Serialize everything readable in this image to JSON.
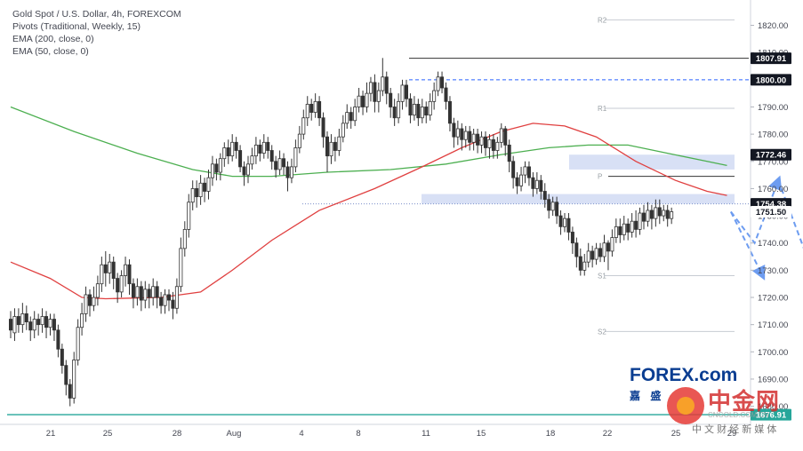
{
  "legend": {
    "line1": "Gold Spot / U.S. Dollar, 4h, FOREXCOM",
    "line2": "Pivots (Traditional, Weekly, 15)",
    "line3": "EMA (200, close, 0)",
    "line4": "EMA (50, close, 0)"
  },
  "watermark": {
    "brand": "FOREX.com",
    "brand_cn": "嘉 盛",
    "site_logo": "中金网",
    "site_url": "CNGOLD.COM.CN",
    "site_tagline": "中 文 财 经 新 媒 体"
  },
  "colors": {
    "up": "#333333",
    "down": "#333333",
    "ema200": "#4caf50",
    "ema50": "#e04040",
    "zone": "#b8c7ec",
    "projection": "#6d9cf0",
    "axis_tag": "#131722",
    "pivot_line": "#c7cbd3",
    "bottom_line": "#26a69a"
  },
  "chart_data": {
    "type": "candlestick",
    "title": "Gold Spot / U.S. Dollar, 4h, FOREXCOM",
    "ylim": [
      1674,
      1828
    ],
    "y_ticks": [
      1820,
      1810,
      1800,
      1790,
      1780,
      1770,
      1760,
      1750,
      1740,
      1730,
      1720,
      1710,
      1700,
      1690,
      1680
    ],
    "y_tick_labels": [
      "1820.00",
      "1810.00",
      "1800.00",
      "1790.00",
      "1780.00",
      "1770.00",
      "1760.00",
      "1750.00",
      "1740.00",
      "1730.00",
      "1720.00",
      "1710.00",
      "1700.00",
      "1690.00",
      "1680.00"
    ],
    "x_labels": [
      "21",
      "25",
      "28",
      "Aug",
      "4",
      "8",
      "11",
      "15",
      "18",
      "22",
      "25",
      "29"
    ],
    "price_tags": [
      {
        "label": "1807.91",
        "value": 1807.91,
        "bg": "#131722",
        "fg": "#ffffff"
      },
      {
        "label": "1800.00",
        "value": 1800.0,
        "bg": "#131722",
        "fg": "#ffffff"
      },
      {
        "label": "1772.46",
        "value": 1772.46,
        "bg": "#131722",
        "fg": "#ffffff"
      },
      {
        "label": "1754.38",
        "value": 1754.38,
        "bg": "#131722",
        "fg": "#ffffff"
      },
      {
        "label": "1751.50",
        "value": 1751.5,
        "bg": "#ffffff",
        "fg": "#131722"
      },
      {
        "label": "1676.91",
        "value": 1676.91,
        "bg": "#26a69a",
        "fg": "#ffffff"
      }
    ],
    "pivots": [
      {
        "label": "R2",
        "value": 1822.0
      },
      {
        "label": "R1",
        "value": 1789.5
      },
      {
        "label": "P",
        "value": 1764.5
      },
      {
        "label": "S1",
        "value": 1728.0
      },
      {
        "label": "S2",
        "value": 1707.5
      }
    ],
    "levels": {
      "high_line": 1807.91,
      "dashed_line": 1800.0,
      "dotted_line": 1754.38,
      "bottom_line": 1676.91
    },
    "zones": [
      {
        "from": 1767.0,
        "to": 1772.46
      },
      {
        "from": 1754.38,
        "to": 1758.0
      }
    ],
    "ema200": [
      {
        "x": 0,
        "y": 1790
      },
      {
        "x": 16,
        "y": 1781
      },
      {
        "x": 32,
        "y": 1773
      },
      {
        "x": 46,
        "y": 1767
      },
      {
        "x": 56,
        "y": 1764.5
      },
      {
        "x": 66,
        "y": 1764.5
      },
      {
        "x": 80,
        "y": 1766
      },
      {
        "x": 96,
        "y": 1767
      },
      {
        "x": 110,
        "y": 1769
      },
      {
        "x": 124,
        "y": 1772.5
      },
      {
        "x": 136,
        "y": 1775
      },
      {
        "x": 146,
        "y": 1776
      },
      {
        "x": 156,
        "y": 1776
      },
      {
        "x": 166,
        "y": 1773
      },
      {
        "x": 176,
        "y": 1770
      },
      {
        "x": 181,
        "y": 1768.5
      }
    ],
    "ema50": [
      {
        "x": 0,
        "y": 1733
      },
      {
        "x": 10,
        "y": 1727
      },
      {
        "x": 18,
        "y": 1720
      },
      {
        "x": 24,
        "y": 1719.5
      },
      {
        "x": 38,
        "y": 1720
      },
      {
        "x": 48,
        "y": 1722
      },
      {
        "x": 56,
        "y": 1730
      },
      {
        "x": 66,
        "y": 1741
      },
      {
        "x": 78,
        "y": 1752
      },
      {
        "x": 92,
        "y": 1760
      },
      {
        "x": 104,
        "y": 1768
      },
      {
        "x": 114,
        "y": 1775
      },
      {
        "x": 124,
        "y": 1781
      },
      {
        "x": 132,
        "y": 1784
      },
      {
        "x": 140,
        "y": 1783
      },
      {
        "x": 148,
        "y": 1779
      },
      {
        "x": 158,
        "y": 1770
      },
      {
        "x": 168,
        "y": 1763
      },
      {
        "x": 176,
        "y": 1759
      },
      {
        "x": 181,
        "y": 1757.5
      }
    ],
    "projections": [
      {
        "points": [
          {
            "x": 182,
            "y": 1751.5
          },
          {
            "x": 188,
            "y": 1740
          },
          {
            "x": 194,
            "y": 1763
          }
        ]
      },
      {
        "points": [
          {
            "x": 182,
            "y": 1751.5
          },
          {
            "x": 190,
            "y": 1728
          }
        ]
      },
      {
        "points": [
          {
            "x": 194,
            "y": 1763
          },
          {
            "x": 203,
            "y": 1728
          }
        ]
      }
    ],
    "candles": [
      [
        0,
        1712,
        1708,
        1715,
        1705
      ],
      [
        1,
        1707,
        1713,
        1716,
        1704
      ],
      [
        2,
        1713,
        1710,
        1716,
        1707
      ],
      [
        3,
        1710,
        1714,
        1718,
        1707
      ],
      [
        4,
        1714,
        1711,
        1717,
        1708
      ],
      [
        5,
        1711,
        1708,
        1713,
        1704
      ],
      [
        6,
        1708,
        1712,
        1715,
        1705
      ],
      [
        7,
        1712,
        1710,
        1714,
        1706
      ],
      [
        8,
        1710,
        1713,
        1716,
        1707
      ],
      [
        9,
        1713,
        1709,
        1715,
        1705
      ],
      [
        10,
        1709,
        1712,
        1714,
        1706
      ],
      [
        11,
        1712,
        1708,
        1714,
        1704
      ],
      [
        12,
        1708,
        1701,
        1710,
        1698
      ],
      [
        13,
        1701,
        1695,
        1703,
        1692
      ],
      [
        14,
        1695,
        1688,
        1697,
        1684
      ],
      [
        15,
        1688,
        1683,
        1690,
        1680
      ],
      [
        16,
        1683,
        1697,
        1700,
        1681
      ],
      [
        17,
        1697,
        1709,
        1712,
        1695
      ],
      [
        18,
        1709,
        1714,
        1718,
        1706
      ],
      [
        19,
        1714,
        1721,
        1724,
        1711
      ],
      [
        20,
        1721,
        1717,
        1723,
        1713
      ],
      [
        21,
        1717,
        1720,
        1724,
        1715
      ],
      [
        22,
        1720,
        1725,
        1728,
        1717
      ],
      [
        23,
        1725,
        1732,
        1735,
        1722
      ],
      [
        24,
        1732,
        1729,
        1737,
        1724
      ],
      [
        25,
        1729,
        1733,
        1736,
        1725
      ],
      [
        26,
        1733,
        1727,
        1735,
        1723
      ],
      [
        27,
        1727,
        1722,
        1729,
        1718
      ],
      [
        28,
        1722,
        1728,
        1730,
        1720
      ],
      [
        29,
        1728,
        1732,
        1735,
        1724
      ],
      [
        30,
        1732,
        1725,
        1734,
        1721
      ],
      [
        31,
        1725,
        1720,
        1727,
        1716
      ],
      [
        32,
        1720,
        1724,
        1727,
        1717
      ],
      [
        33,
        1724,
        1719,
        1726,
        1715
      ],
      [
        34,
        1719,
        1723,
        1726,
        1716
      ],
      [
        35,
        1723,
        1720,
        1725,
        1716
      ],
      [
        36,
        1720,
        1724,
        1727,
        1717
      ],
      [
        37,
        1724,
        1720,
        1726,
        1716
      ],
      [
        38,
        1720,
        1717,
        1722,
        1714
      ],
      [
        39,
        1717,
        1721,
        1723,
        1714
      ],
      [
        40,
        1721,
        1719,
        1723,
        1715
      ],
      [
        41,
        1719,
        1716,
        1722,
        1712
      ],
      [
        42,
        1716,
        1724,
        1727,
        1714
      ],
      [
        43,
        1724,
        1738,
        1742,
        1722
      ],
      [
        44,
        1738,
        1745,
        1748,
        1735
      ],
      [
        45,
        1745,
        1755,
        1758,
        1742
      ],
      [
        46,
        1755,
        1760,
        1763,
        1752
      ],
      [
        47,
        1760,
        1757,
        1763,
        1753
      ],
      [
        48,
        1757,
        1762,
        1765,
        1754
      ],
      [
        49,
        1762,
        1759,
        1764,
        1755
      ],
      [
        50,
        1759,
        1764,
        1767,
        1756
      ],
      [
        51,
        1764,
        1769,
        1772,
        1761
      ],
      [
        52,
        1769,
        1766,
        1771,
        1763
      ],
      [
        53,
        1766,
        1771,
        1773,
        1763
      ],
      [
        54,
        1771,
        1775,
        1777,
        1768
      ],
      [
        55,
        1775,
        1772,
        1778,
        1769
      ],
      [
        56,
        1772,
        1777,
        1780,
        1770
      ],
      [
        57,
        1777,
        1774,
        1779,
        1771
      ],
      [
        58,
        1774,
        1768,
        1776,
        1766
      ],
      [
        59,
        1768,
        1765,
        1770,
        1761
      ],
      [
        60,
        1765,
        1769,
        1772,
        1762
      ],
      [
        61,
        1769,
        1772,
        1775,
        1767
      ],
      [
        62,
        1772,
        1776,
        1779,
        1769
      ],
      [
        63,
        1776,
        1773,
        1778,
        1770
      ],
      [
        64,
        1773,
        1777,
        1780,
        1771
      ],
      [
        65,
        1777,
        1774,
        1779,
        1771
      ],
      [
        66,
        1774,
        1770,
        1776,
        1767
      ],
      [
        67,
        1770,
        1767,
        1772,
        1764
      ],
      [
        68,
        1767,
        1771,
        1774,
        1765
      ],
      [
        69,
        1771,
        1768,
        1773,
        1765
      ],
      [
        70,
        1768,
        1764,
        1770,
        1759
      ],
      [
        71,
        1764,
        1768,
        1771,
        1762
      ],
      [
        72,
        1768,
        1775,
        1778,
        1766
      ],
      [
        73,
        1775,
        1780,
        1783,
        1773
      ],
      [
        74,
        1780,
        1786,
        1789,
        1778
      ],
      [
        75,
        1786,
        1791,
        1794,
        1783
      ],
      [
        76,
        1791,
        1788,
        1793,
        1785
      ],
      [
        77,
        1788,
        1792,
        1795,
        1786
      ],
      [
        78,
        1792,
        1786,
        1794,
        1783
      ],
      [
        79,
        1786,
        1779,
        1788,
        1775
      ],
      [
        80,
        1779,
        1772,
        1781,
        1766
      ],
      [
        81,
        1772,
        1777,
        1780,
        1769
      ],
      [
        82,
        1777,
        1774,
        1779,
        1770
      ],
      [
        83,
        1774,
        1779,
        1782,
        1772
      ],
      [
        84,
        1779,
        1784,
        1787,
        1777
      ],
      [
        85,
        1784,
        1788,
        1791,
        1782
      ],
      [
        86,
        1788,
        1785,
        1790,
        1782
      ],
      [
        87,
        1785,
        1790,
        1793,
        1783
      ],
      [
        88,
        1790,
        1794,
        1797,
        1788
      ],
      [
        89,
        1794,
        1790,
        1796,
        1787
      ],
      [
        90,
        1790,
        1795,
        1799,
        1788
      ],
      [
        91,
        1795,
        1799,
        1801,
        1792
      ],
      [
        92,
        1799,
        1792,
        1802,
        1788
      ],
      [
        93,
        1792,
        1796,
        1799,
        1788
      ],
      [
        94,
        1796,
        1801,
        1808,
        1794
      ],
      [
        95,
        1801,
        1795,
        1803,
        1791
      ],
      [
        96,
        1795,
        1790,
        1797,
        1786
      ],
      [
        97,
        1790,
        1786,
        1793,
        1783
      ],
      [
        98,
        1786,
        1792,
        1795,
        1784
      ],
      [
        99,
        1792,
        1798,
        1800,
        1789
      ],
      [
        100,
        1798,
        1793,
        1800,
        1790
      ],
      [
        101,
        1793,
        1787,
        1795,
        1784
      ],
      [
        102,
        1787,
        1791,
        1794,
        1785
      ],
      [
        103,
        1791,
        1786,
        1793,
        1783
      ],
      [
        104,
        1786,
        1790,
        1793,
        1784
      ],
      [
        105,
        1790,
        1787,
        1792,
        1784
      ],
      [
        106,
        1787,
        1792,
        1795,
        1785
      ],
      [
        107,
        1792,
        1796,
        1799,
        1789
      ],
      [
        108,
        1796,
        1801,
        1803,
        1794
      ],
      [
        109,
        1801,
        1797,
        1803,
        1795
      ],
      [
        110,
        1797,
        1792,
        1799,
        1789
      ],
      [
        111,
        1792,
        1784,
        1794,
        1781
      ],
      [
        112,
        1784,
        1779,
        1786,
        1775
      ],
      [
        113,
        1779,
        1782,
        1785,
        1776
      ],
      [
        114,
        1782,
        1778,
        1784,
        1774
      ],
      [
        115,
        1778,
        1781,
        1783,
        1775
      ],
      [
        116,
        1781,
        1777,
        1783,
        1774
      ],
      [
        117,
        1777,
        1780,
        1782,
        1774
      ],
      [
        118,
        1780,
        1776,
        1782,
        1773
      ],
      [
        119,
        1776,
        1779,
        1781,
        1773
      ],
      [
        120,
        1779,
        1775,
        1781,
        1772
      ],
      [
        121,
        1775,
        1778,
        1780,
        1771
      ],
      [
        122,
        1778,
        1774,
        1780,
        1771
      ],
      [
        123,
        1774,
        1777,
        1779,
        1771
      ],
      [
        124,
        1777,
        1782,
        1784,
        1775
      ],
      [
        125,
        1782,
        1776,
        1783,
        1772
      ],
      [
        126,
        1776,
        1770,
        1778,
        1766
      ],
      [
        127,
        1770,
        1764,
        1772,
        1760
      ],
      [
        128,
        1764,
        1761,
        1766,
        1758
      ],
      [
        129,
        1761,
        1765,
        1768,
        1759
      ],
      [
        130,
        1765,
        1768,
        1770,
        1762
      ],
      [
        131,
        1768,
        1764,
        1770,
        1761
      ],
      [
        132,
        1764,
        1760,
        1766,
        1757
      ],
      [
        133,
        1760,
        1763,
        1766,
        1758
      ],
      [
        134,
        1763,
        1759,
        1765,
        1756
      ],
      [
        135,
        1759,
        1756,
        1762,
        1753
      ],
      [
        136,
        1756,
        1752,
        1758,
        1749
      ],
      [
        137,
        1752,
        1755,
        1757,
        1750
      ],
      [
        138,
        1755,
        1750,
        1757,
        1747
      ],
      [
        139,
        1750,
        1746,
        1752,
        1743
      ],
      [
        140,
        1746,
        1749,
        1751,
        1744
      ],
      [
        141,
        1749,
        1744,
        1751,
        1741
      ],
      [
        142,
        1744,
        1740,
        1746,
        1736
      ],
      [
        143,
        1740,
        1735,
        1742,
        1731
      ],
      [
        144,
        1735,
        1730,
        1738,
        1728
      ],
      [
        145,
        1730,
        1733,
        1736,
        1728
      ],
      [
        146,
        1733,
        1737,
        1740,
        1731
      ],
      [
        147,
        1737,
        1734,
        1739,
        1731
      ],
      [
        148,
        1734,
        1738,
        1740,
        1732
      ],
      [
        149,
        1738,
        1735,
        1740,
        1733
      ],
      [
        150,
        1735,
        1740,
        1743,
        1733
      ],
      [
        151,
        1740,
        1737,
        1741,
        1730
      ],
      [
        152,
        1737,
        1742,
        1745,
        1735
      ],
      [
        153,
        1742,
        1746,
        1749,
        1740
      ],
      [
        154,
        1746,
        1743,
        1749,
        1740
      ],
      [
        155,
        1743,
        1747,
        1750,
        1741
      ],
      [
        156,
        1747,
        1744,
        1749,
        1741
      ],
      [
        157,
        1744,
        1748,
        1751,
        1742
      ],
      [
        158,
        1748,
        1745,
        1752,
        1742
      ],
      [
        159,
        1745,
        1751,
        1753,
        1743
      ],
      [
        160,
        1751,
        1748,
        1754,
        1745
      ],
      [
        161,
        1748,
        1752,
        1755,
        1746
      ],
      [
        162,
        1752,
        1749,
        1754,
        1745
      ],
      [
        163,
        1749,
        1753,
        1756,
        1746
      ],
      [
        164,
        1753,
        1750,
        1756,
        1747
      ],
      [
        165,
        1750,
        1752,
        1754,
        1748
      ],
      [
        166,
        1752,
        1749,
        1754,
        1746
      ],
      [
        167,
        1749,
        1751.5,
        1753,
        1747
      ]
    ]
  }
}
